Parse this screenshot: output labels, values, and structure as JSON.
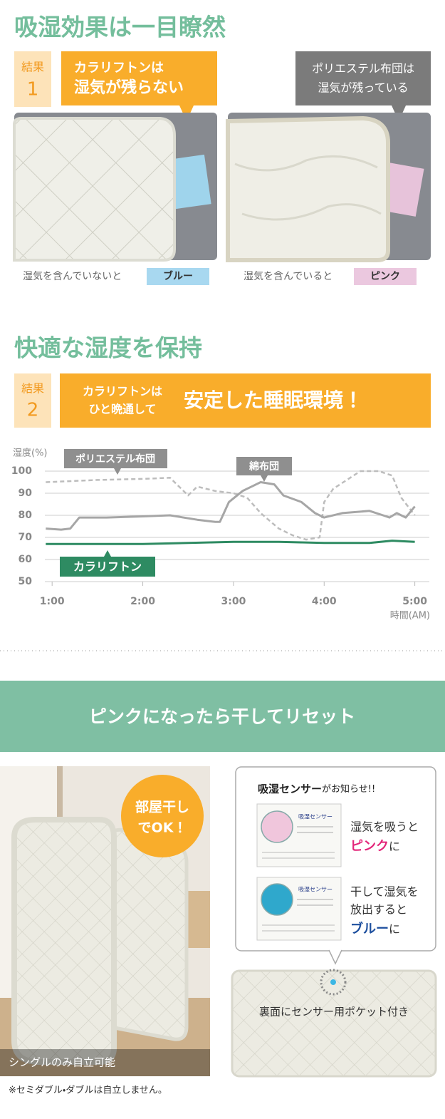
{
  "section1": {
    "title": "吸湿効果は一目瞭然",
    "result_label": "結果",
    "result_number": "1",
    "callout_left": [
      "カラリフトンは",
      "湿気が残らない"
    ],
    "callout_right": [
      "ポリエステル布団は",
      "湿気が残っている"
    ],
    "caption_left": "湿気を含んでいないと",
    "badge_left": "ブルー",
    "caption_right": "湿気を含んでいると",
    "badge_right": "ピンク"
  },
  "section2": {
    "title": "快適な湿度を保持",
    "result_label": "結果",
    "result_number": "2",
    "banner_small": [
      "カラリフトンは",
      "ひと晩通して"
    ],
    "banner_large": "安定した睡眠環境！"
  },
  "chart_data": {
    "type": "line",
    "y_label": "湿度(%)",
    "x_label": "時間(AM)",
    "xlim": [
      0.92,
      5.16
    ],
    "ylim": [
      50,
      100
    ],
    "yticks": [
      50,
      60,
      70,
      80,
      90,
      100
    ],
    "xticks": [
      {
        "value": 1,
        "label": "1:00"
      },
      {
        "value": 2,
        "label": "2:00"
      },
      {
        "value": 3,
        "label": "3:00"
      },
      {
        "value": 4,
        "label": "4:00"
      },
      {
        "value": 5,
        "label": "5:00"
      }
    ],
    "grid": true,
    "series": [
      {
        "name": "ポリエステル布団",
        "color": "#bdbdbd",
        "dashed": true,
        "x": [
          0.93,
          1.5,
          2.0,
          2.3,
          2.5,
          2.6,
          2.8,
          3.0,
          3.15,
          3.3,
          3.5,
          3.65,
          3.8,
          3.95,
          4.0,
          4.1,
          4.25,
          4.4,
          4.6,
          4.75,
          4.85,
          5.0
        ],
        "values": [
          95,
          96,
          96.5,
          97,
          89,
          93,
          91,
          90,
          88,
          81,
          74,
          71,
          69,
          70,
          86,
          92,
          96,
          100,
          100,
          98,
          88,
          80
        ]
      },
      {
        "name": "綿布団",
        "color": "#a6a6a6",
        "dashed": false,
        "x": [
          0.93,
          1.1,
          1.2,
          1.3,
          1.6,
          2.0,
          2.3,
          2.6,
          2.8,
          2.85,
          2.95,
          3.1,
          3.2,
          3.3,
          3.45,
          3.55,
          3.75,
          3.9,
          4.0,
          4.2,
          4.5,
          4.65,
          4.72,
          4.8,
          4.9,
          5.0
        ],
        "values": [
          74,
          73.5,
          74,
          79,
          79,
          79.5,
          80,
          78,
          77,
          77,
          86,
          91,
          93,
          95,
          94,
          89,
          86,
          81,
          79,
          81,
          82,
          80,
          79,
          81,
          79,
          84
        ]
      },
      {
        "name": "カラリフトン",
        "color": "#2e8b62",
        "dashed": false,
        "x": [
          0.93,
          1.5,
          2.0,
          2.5,
          3.0,
          3.5,
          4.0,
          4.5,
          4.75,
          5.0
        ],
        "values": [
          67,
          67,
          67,
          67.5,
          68,
          68,
          67.5,
          67.5,
          68.5,
          68
        ]
      }
    ]
  },
  "section3": {
    "banner": "ピンクになったら干してリセット",
    "badge": [
      "部屋干し",
      "でOK！"
    ],
    "photo_caption": "シングルのみ自立可能",
    "note": "※セミダブル・ダブルは自立しません。",
    "sensor_title_bold": "吸湿センサー",
    "sensor_title_rest": "がお知らせ!!",
    "card_label_pink": "吸湿センサー",
    "card_label_blue": "吸湿センサー",
    "pink_line": "湿気を吸うと",
    "pink_word": "ピンク",
    "pink_suffix": "に",
    "blue_lines": [
      "干して湿気を",
      "放出すると"
    ],
    "blue_word": "ブルー",
    "blue_suffix": "に",
    "futon_caption": "裏面にセンサー用ポケット付き"
  }
}
